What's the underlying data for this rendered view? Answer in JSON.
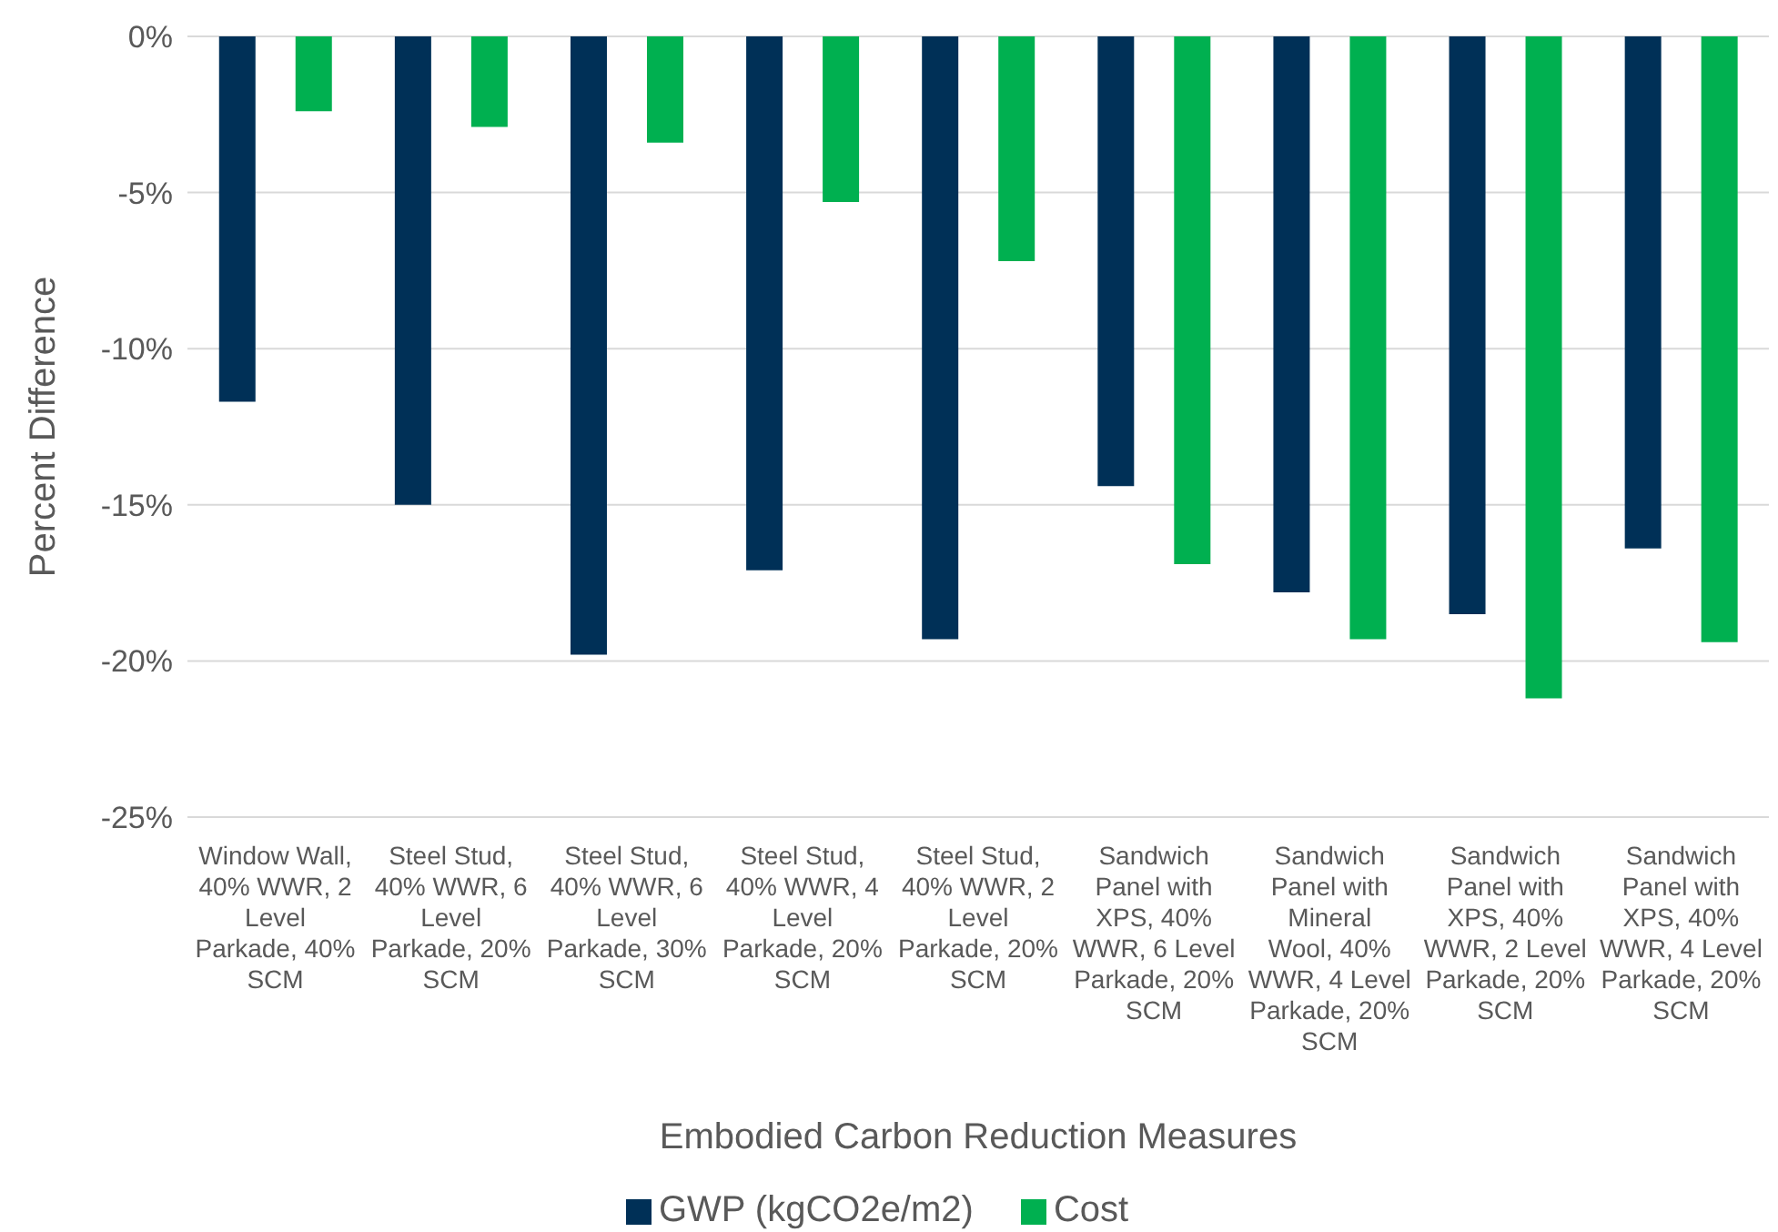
{
  "chart_data": {
    "type": "bar",
    "xlabel": "Embodied Carbon Reduction Measures",
    "ylabel": "Percent Difference",
    "categories": [
      "Window Wall, 40% WWR, 2 Level Parkade, 40% SCM",
      "Steel Stud, 40% WWR, 6 Level Parkade, 20% SCM",
      "Steel Stud, 40% WWR, 6 Level Parkade, 30% SCM",
      "Steel Stud, 40% WWR, 4 Level Parkade, 20% SCM",
      "Steel Stud, 40% WWR, 2 Level Parkade, 20% SCM",
      "Sandwich Panel with XPS, 40% WWR, 6 Level Parkade, 20% SCM",
      "Sandwich Panel with Mineral Wool, 40% WWR, 4 Level Parkade, 20% SCM",
      "Sandwich Panel with XPS, 40% WWR, 2 Level Parkade, 20% SCM",
      "Sandwich Panel with XPS, 40% WWR, 4 Level Parkade, 20% SCM"
    ],
    "series": [
      {
        "name": "GWP (kgCO2e/m2)",
        "color": "#003057",
        "values": [
          -11.7,
          -15.0,
          -19.8,
          -17.1,
          -19.3,
          -14.4,
          -17.8,
          -18.5,
          -16.4
        ]
      },
      {
        "name": "Cost",
        "color": "#00b050",
        "values": [
          -2.4,
          -2.9,
          -3.4,
          -5.3,
          -7.2,
          -16.9,
          -19.3,
          -21.2,
          -19.4
        ]
      }
    ],
    "ylim": [
      -25,
      0
    ],
    "yticks": [
      {
        "value": -25,
        "label": "-25%"
      },
      {
        "value": -20,
        "label": "-20%"
      },
      {
        "value": -15,
        "label": "-15%"
      },
      {
        "value": -10,
        "label": "-10%"
      },
      {
        "value": -5,
        "label": "-5%"
      },
      {
        "value": 0,
        "label": "0%"
      }
    ],
    "grid": "y",
    "legend": "bottom"
  }
}
